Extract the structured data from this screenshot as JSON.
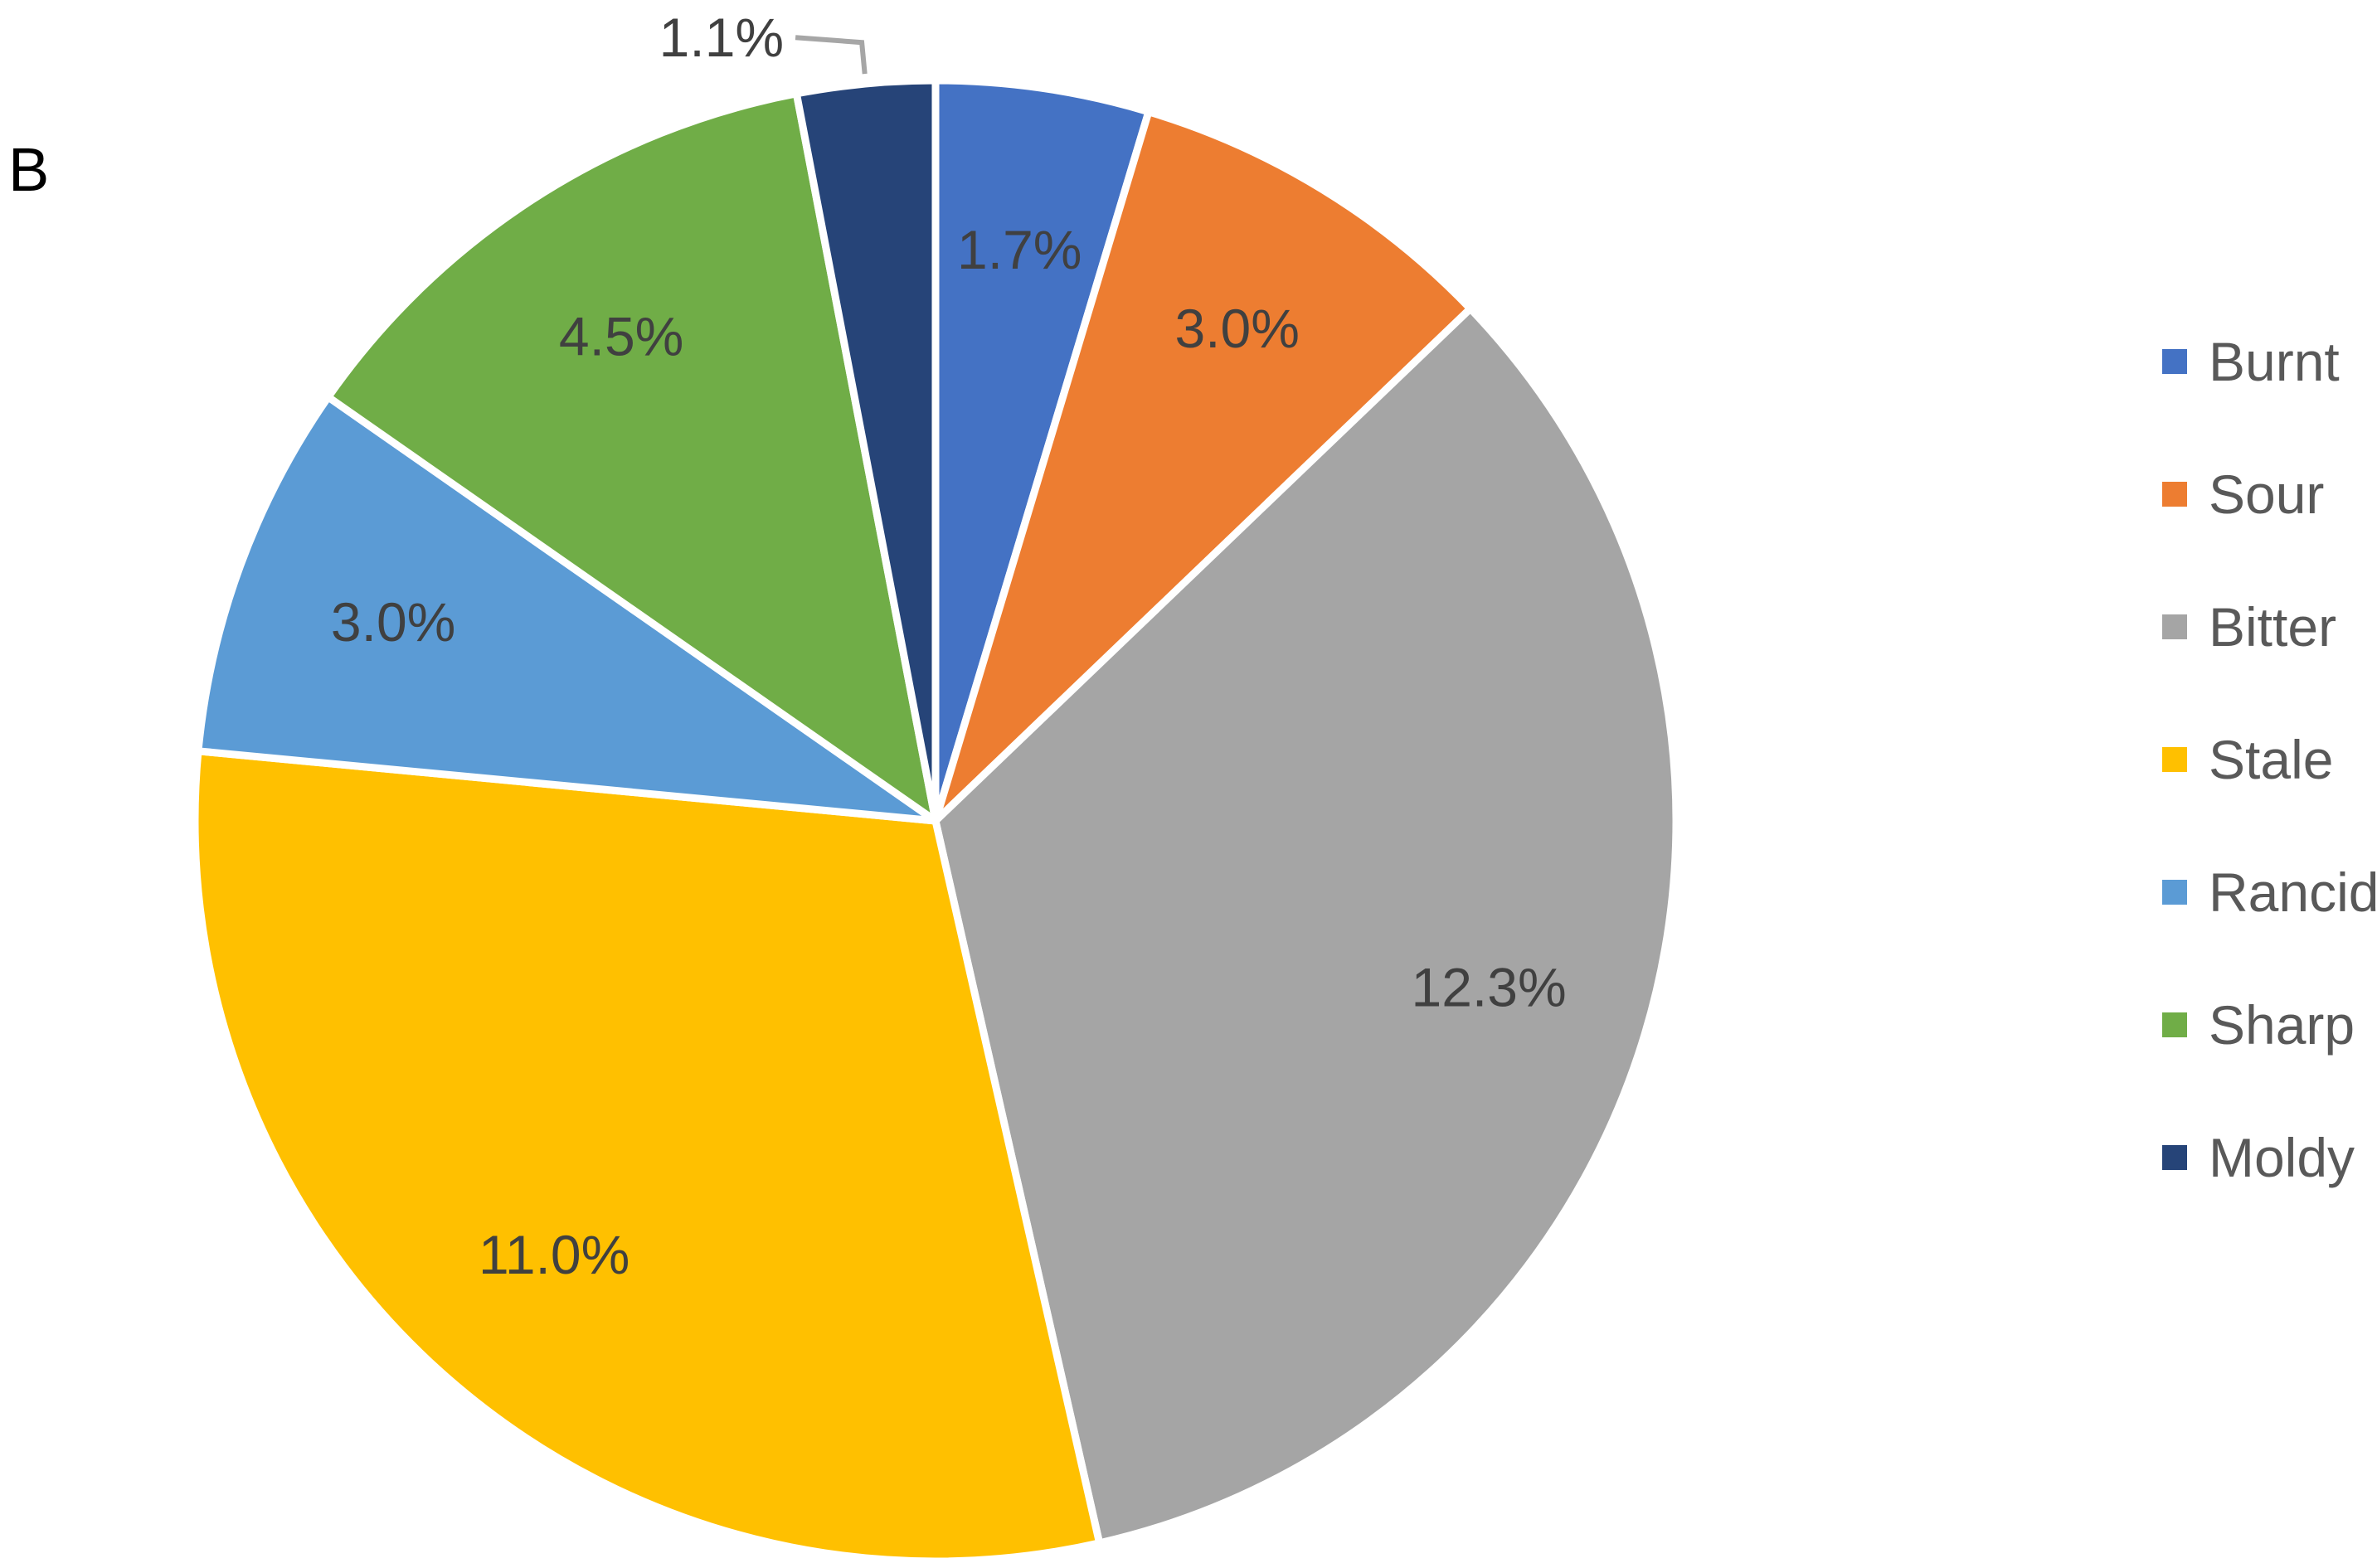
{
  "panel_label": "B",
  "chart_data": {
    "type": "pie",
    "title": "",
    "legend_position": "right",
    "slices": [
      {
        "name": "Burnt",
        "value": 1.7,
        "label": "1.7%",
        "color": "#4472C4"
      },
      {
        "name": "Sour",
        "value": 3.0,
        "label": "3.0%",
        "color": "#ED7D31"
      },
      {
        "name": "Bitter",
        "value": 12.3,
        "label": "12.3%",
        "color": "#A5A5A5"
      },
      {
        "name": "Stale",
        "value": 11.0,
        "label": "11.0%",
        "color": "#FFC000"
      },
      {
        "name": "Rancid",
        "value": 3.0,
        "label": "3.0%",
        "color": "#5B9BD5"
      },
      {
        "name": "Sharp",
        "value": 4.5,
        "label": "4.5%",
        "color": "#70AD47"
      },
      {
        "name": "Moldy",
        "value": 1.1,
        "label": "1.1%",
        "color": "#264478"
      }
    ],
    "label_color": "#404040",
    "legend_text_color": "#595959"
  }
}
